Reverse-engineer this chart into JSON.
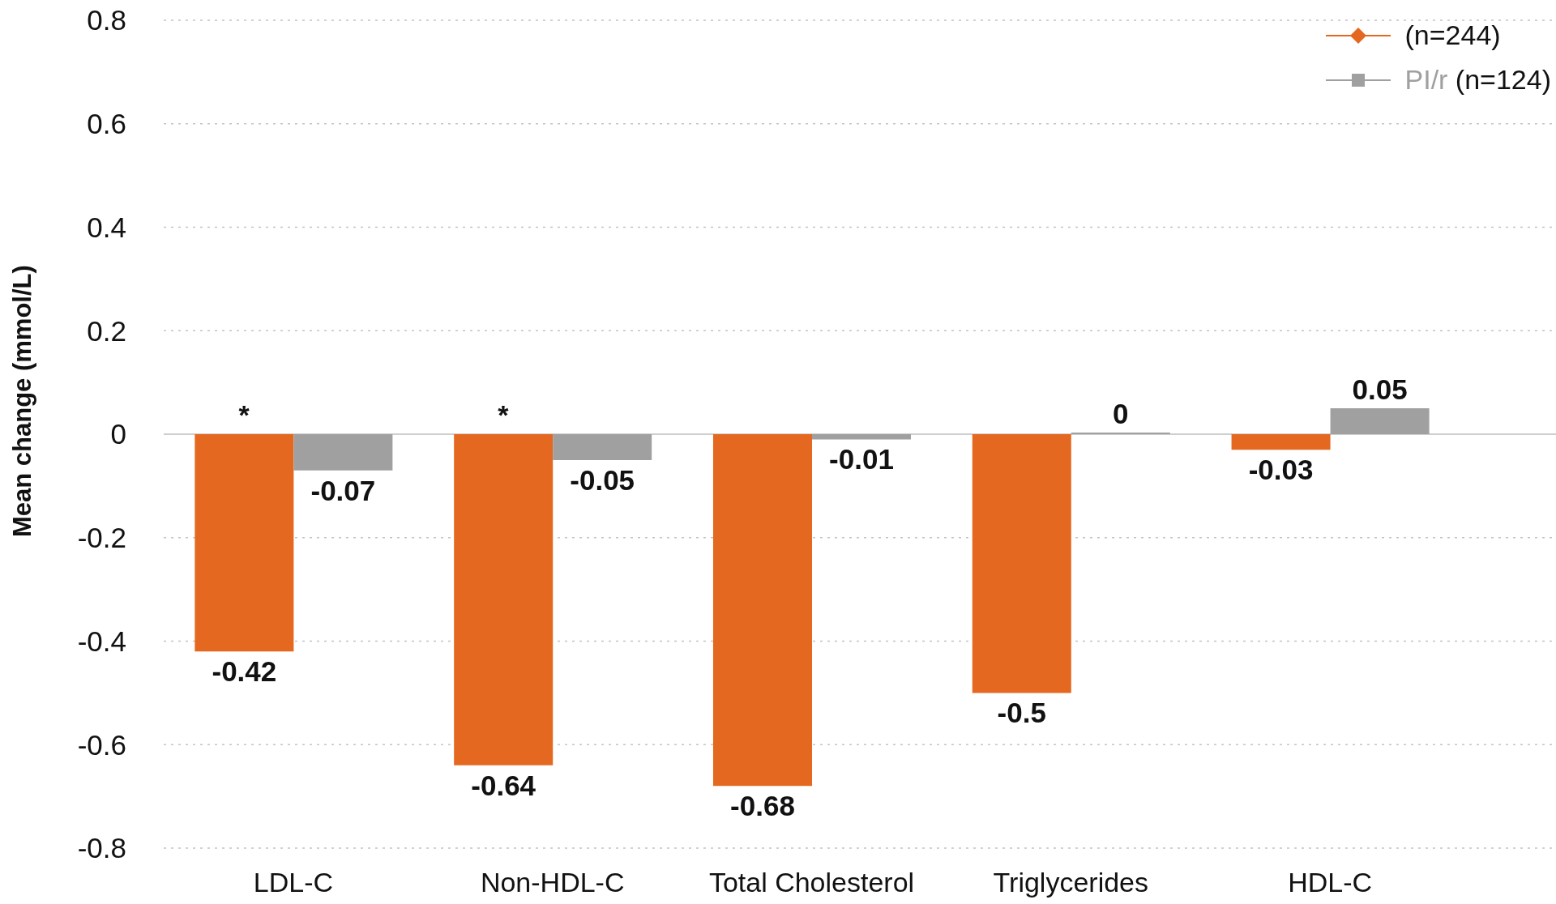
{
  "chart_data": {
    "type": "bar",
    "categories": [
      "LDL-C",
      "Non-HDL-C",
      "Total Cholesterol",
      "Triglycerides",
      "HDL-C"
    ],
    "series": [
      {
        "name": "(n=244)",
        "color": "#e4681f",
        "values": [
          -0.42,
          -0.64,
          -0.68,
          -0.5,
          -0.03
        ]
      },
      {
        "name": "PI/r (n=124)",
        "color": "#a0a0a0",
        "values": [
          -0.07,
          -0.05,
          -0.01,
          0,
          0.05
        ]
      }
    ],
    "ylabel": "Mean change (mmol/L)",
    "ylim": [
      -0.8,
      0.8
    ],
    "yticks": [
      -0.8,
      -0.6,
      -0.4,
      -0.2,
      0,
      0.2,
      0.4,
      0.6,
      0.8
    ],
    "grid": "y",
    "legend": "top right",
    "data_labels": true,
    "annotations": [
      {
        "text": "*",
        "x": "LDL-C",
        "y": 0
      },
      {
        "text": "*",
        "x": "Non-HDL-C",
        "y": 0
      }
    ]
  }
}
